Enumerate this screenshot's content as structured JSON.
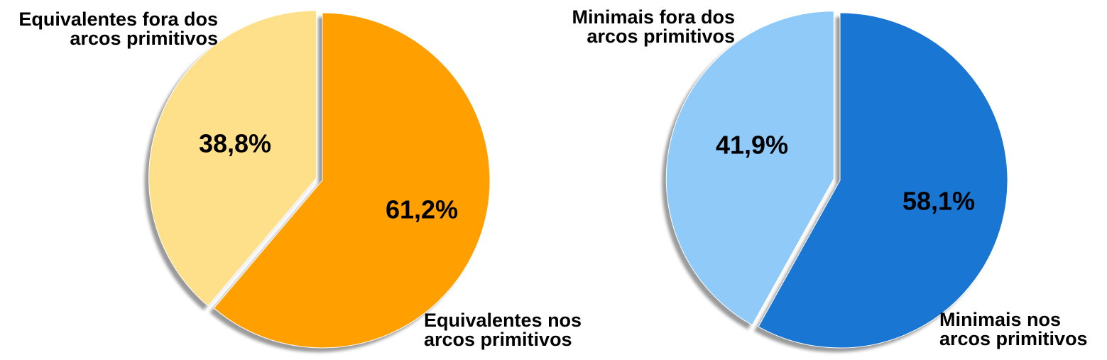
{
  "chart_data": [
    {
      "type": "pie",
      "categories": [
        "Equivalentes fora dos arcos primitivos",
        "Equivalentes nos arcos primitivos"
      ],
      "values": [
        38.8,
        61.2
      ],
      "labels": [
        {
          "lines": [
            "Equivalentes fora dos",
            "arcos primitivos"
          ],
          "percent": "38,8%"
        },
        {
          "lines": [
            "Equivalentes nos",
            "arcos primitivos"
          ],
          "percent": "61,2%"
        }
      ],
      "colors": [
        "#FFE08A",
        "#FFA000"
      ],
      "exploded_slice": 0,
      "shadow": true,
      "title": "",
      "legend": "none"
    },
    {
      "type": "pie",
      "categories": [
        "Minimais fora dos arcos primitivos",
        "Minimais nos arcos primitivos"
      ],
      "values": [
        41.9,
        58.1
      ],
      "labels": [
        {
          "lines": [
            "Minimais fora dos",
            "arcos primitivos"
          ],
          "percent": "41,9%"
        },
        {
          "lines": [
            "Minimais nos",
            "arcos primitivos"
          ],
          "percent": "58,1%"
        }
      ],
      "colors": [
        "#90CAF9",
        "#1976D2"
      ],
      "exploded_slice": 0,
      "shadow": true,
      "title": "",
      "legend": "none"
    }
  ]
}
